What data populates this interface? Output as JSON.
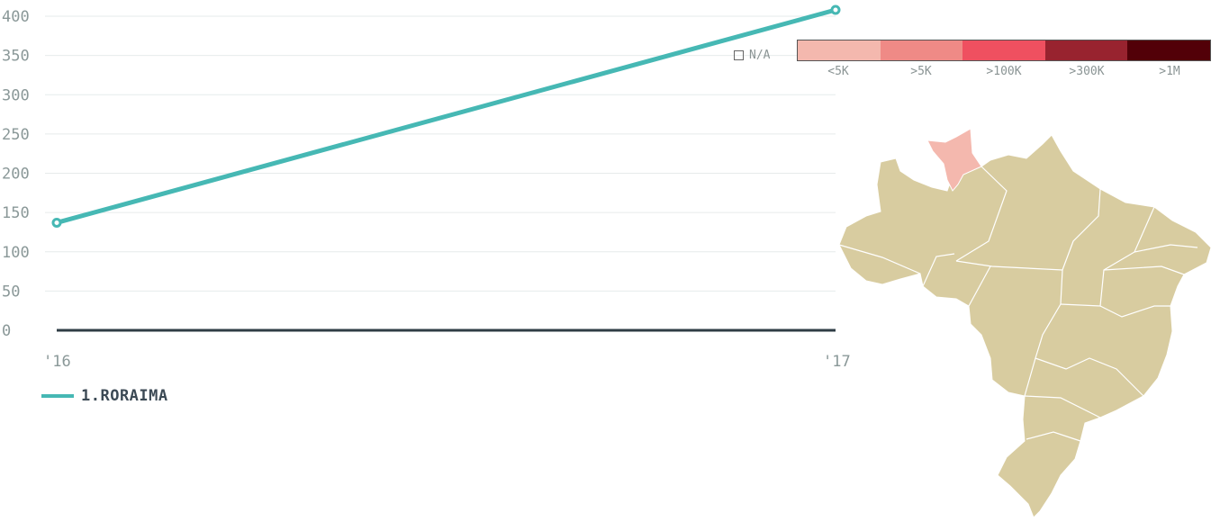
{
  "chart_data": {
    "type": "line",
    "x": [
      "'16",
      "'17"
    ],
    "series": [
      {
        "name": "1.RORAIMA",
        "values": [
          137,
          408
        ],
        "color": "#46b8b4"
      }
    ],
    "ylim": [
      0,
      400
    ],
    "yticks": [
      0,
      50,
      100,
      150,
      200,
      250,
      300,
      350,
      400
    ],
    "grid": true
  },
  "legend": {
    "label": "1.RORAIMA"
  },
  "map_legend": {
    "na_label": "N/A",
    "bins": [
      {
        "label": "<5K",
        "color": "#f4b8ae"
      },
      {
        "label": ">5K",
        "color": "#ef8a86"
      },
      {
        "label": ">100K",
        "color": "#ef5060"
      },
      {
        "label": ">300K",
        "color": "#98232f"
      },
      {
        "label": ">1M",
        "color": "#520008"
      }
    ]
  },
  "map": {
    "highlighted_state": "Roraima",
    "highlight_color": "#f4b8ae",
    "base_color": "#d8cca0"
  }
}
